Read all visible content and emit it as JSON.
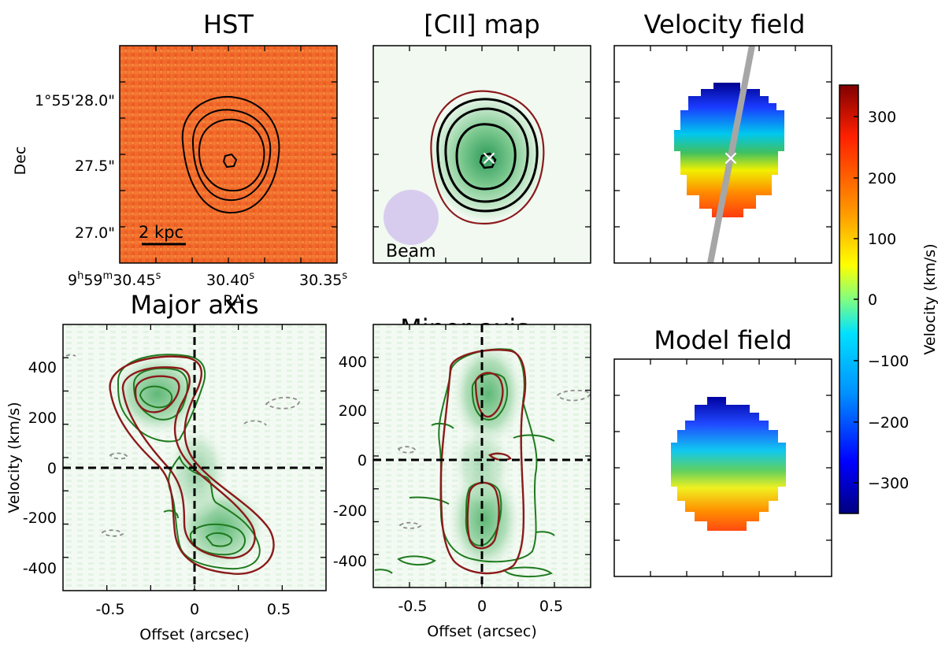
{
  "colors": {
    "hst_background": "#f06a2a",
    "cii_green": "#2e8b57",
    "model_red": "#8b1a1a",
    "contour_black": "#000000",
    "beam_fill": "#d8ccee",
    "pa_line": "#a6a6a6"
  },
  "panels": {
    "hst": {
      "title": "HST",
      "dec_ticks": [
        "1°55'28.0\"",
        "27.5\"",
        "27.0\""
      ],
      "ra_ticks": [
        {
          "main": "9",
          "sup1": "h",
          "mid": "59",
          "sup2": "m",
          "rest": "30.45",
          "sup3": "s"
        },
        {
          "main": "30.40",
          "sup3": "s"
        },
        {
          "main": "30.35",
          "sup3": "s"
        }
      ],
      "xlabel": "RA",
      "ylabel": "Dec",
      "scalebar_label": "2 kpc"
    },
    "cii_map": {
      "title": "[CII] map",
      "beam_label": "Beam",
      "center_marker": "×"
    },
    "velocity_field": {
      "title": "Velocity field"
    },
    "model_field": {
      "title": "Model field"
    },
    "major_axis": {
      "title": "Major axis",
      "xlabel": "Offset (arcsec)",
      "ylabel": "Velocity (km/s)",
      "xticks": [
        "-0.5",
        "0",
        "0.5"
      ],
      "yticks": [
        "400",
        "200",
        "0",
        "-200",
        "-400"
      ]
    },
    "minor_axis": {
      "title": "Minor axis",
      "xlabel": "Offset (arcsec)",
      "xticks": [
        "-0.5",
        "0",
        "0.5"
      ],
      "yticks": [
        "400",
        "200",
        "0",
        "-200",
        "-400"
      ]
    }
  },
  "colorbar": {
    "label": "Velocity (km/s)",
    "ticks": [
      "300",
      "200",
      "100",
      "0",
      "−100",
      "−200",
      "−300"
    ],
    "range": [
      -350,
      350
    ]
  },
  "chart_data": [
    {
      "type": "heatmap",
      "title": "Velocity field",
      "value_unit": "km/s",
      "color_range": [
        -350,
        350
      ],
      "gradient": "north-to-south from about -330 km/s (blue) to about +250 km/s (red)"
    },
    {
      "type": "heatmap",
      "title": "Model field",
      "value_unit": "km/s",
      "color_range": [
        -350,
        350
      ]
    },
    {
      "type": "heatmap",
      "title": "Major axis",
      "xlabel": "Offset (arcsec)",
      "ylabel": "Velocity (km/s)",
      "xlim": [
        -0.78,
        0.78
      ],
      "ylim": [
        -490,
        480
      ],
      "emission_peaks": [
        {
          "offset": -0.22,
          "velocity": 300
        },
        {
          "offset": 0.18,
          "velocity": -290
        }
      ]
    },
    {
      "type": "heatmap",
      "title": "Minor axis",
      "xlabel": "Offset (arcsec)",
      "ylabel": "Velocity (km/s)",
      "xlim": [
        -0.78,
        0.78
      ],
      "ylim": [
        -500,
        450
      ],
      "emission_peaks": [
        {
          "offset": 0.05,
          "velocity": 250
        },
        {
          "offset": 0.05,
          "velocity": -250
        }
      ]
    }
  ]
}
